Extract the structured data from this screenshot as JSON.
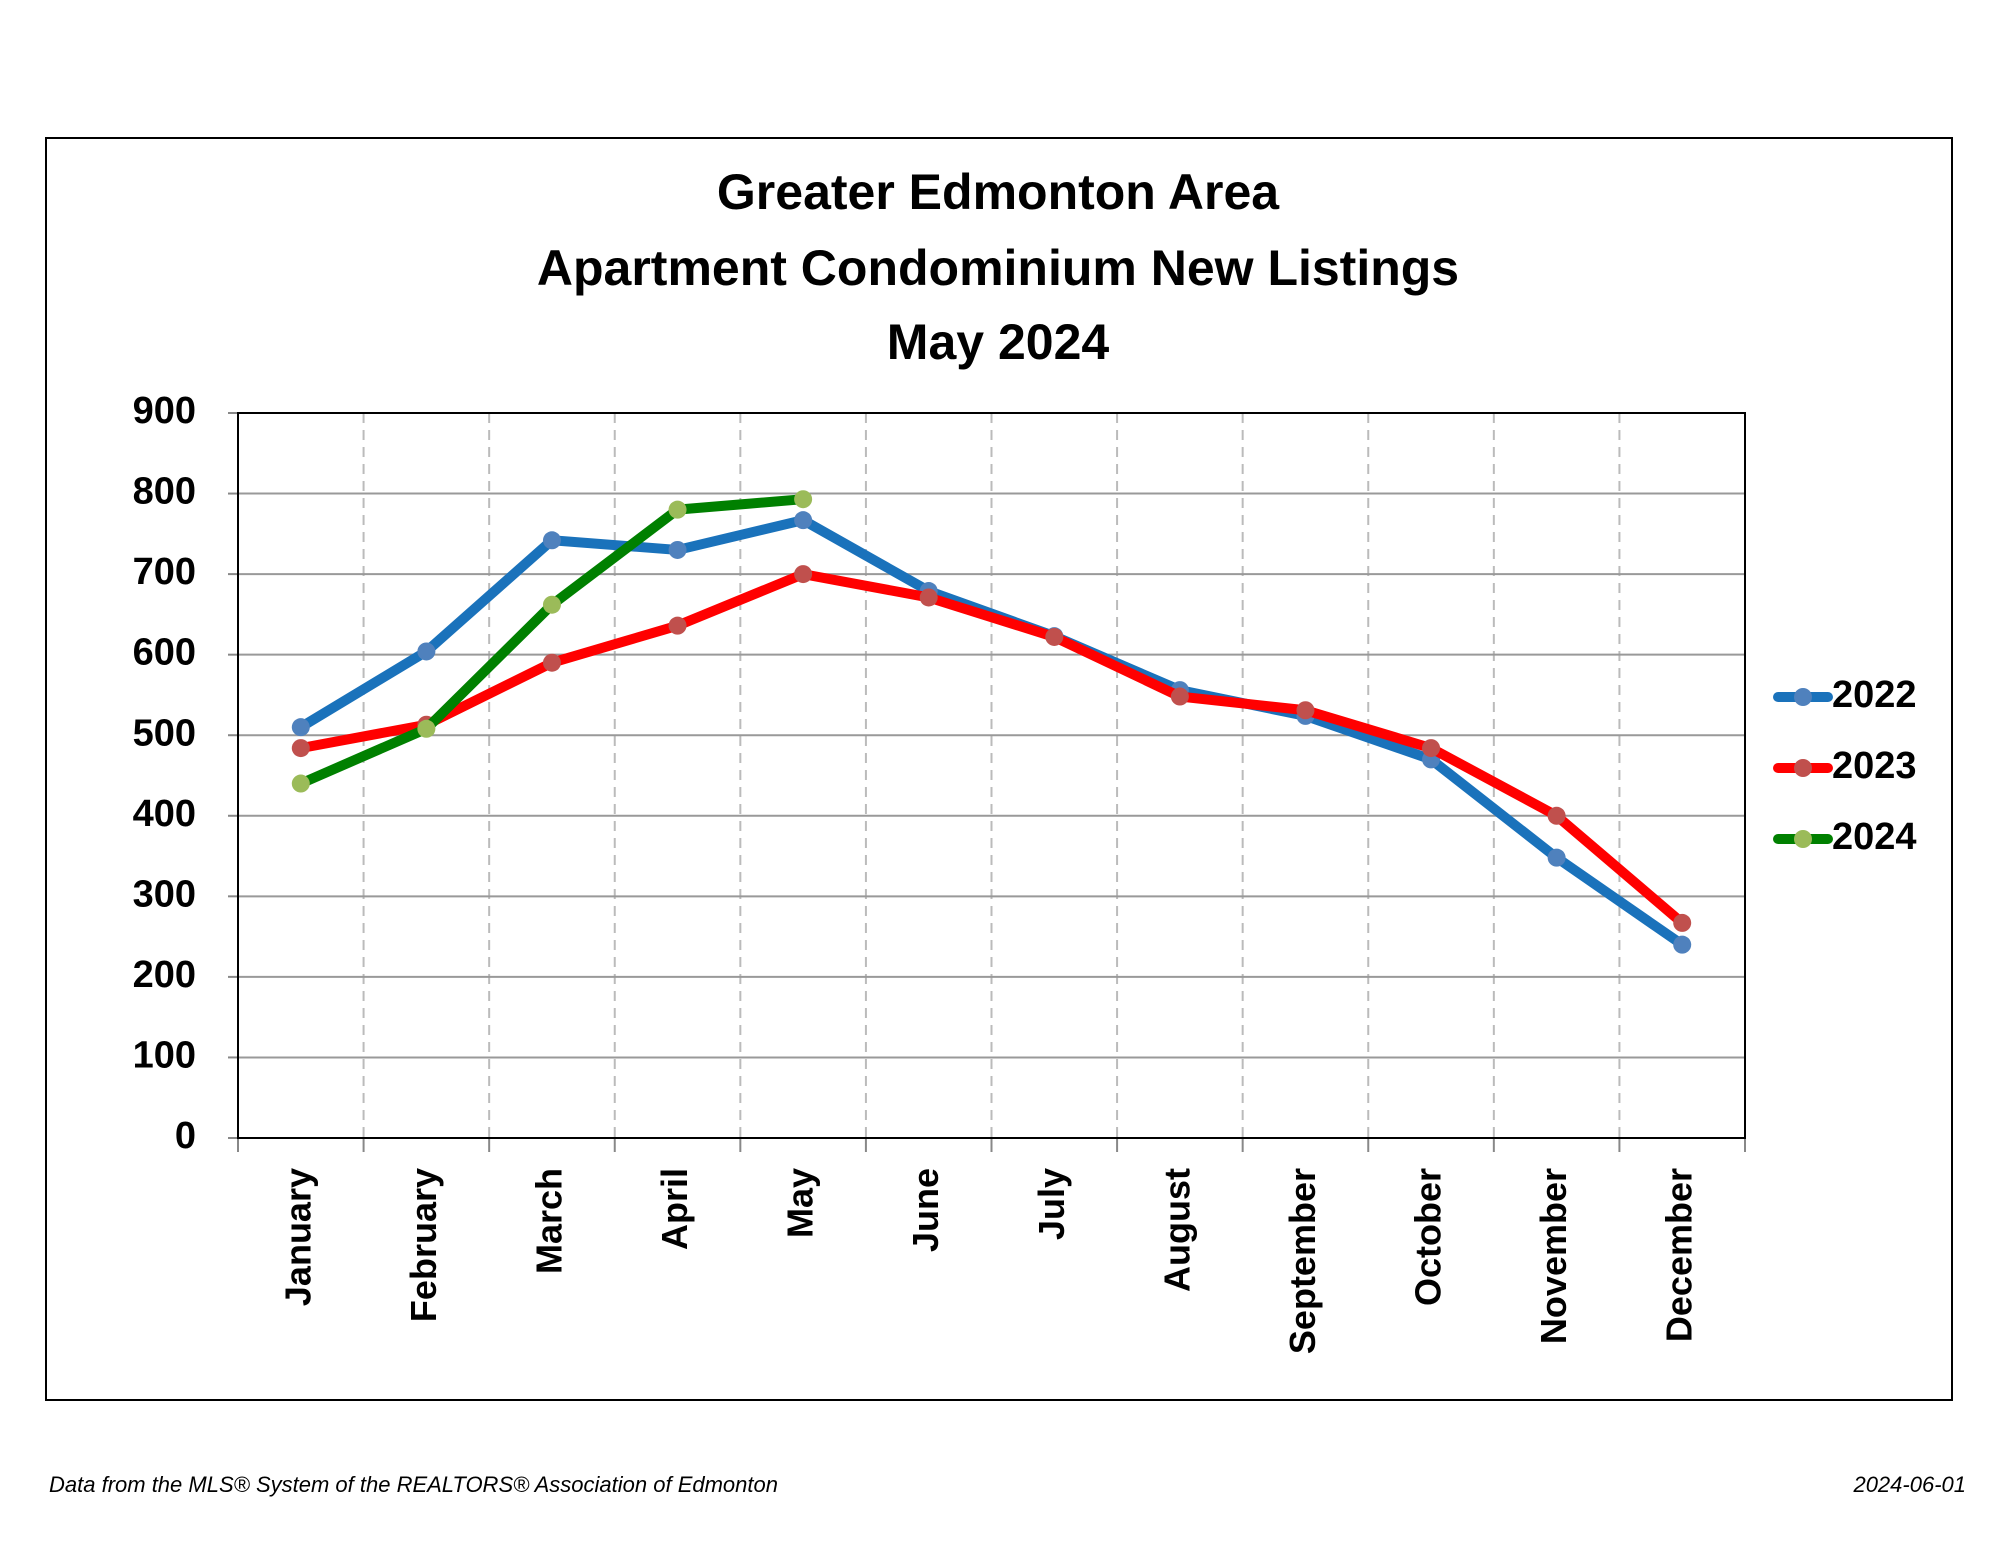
{
  "chart_data": {
    "type": "line",
    "title": [
      "Greater Edmonton Area",
      "Apartment Condominium New Listings",
      "May 2024"
    ],
    "categories": [
      "January",
      "February",
      "March",
      "April",
      "May",
      "June",
      "July",
      "August",
      "September",
      "October",
      "November",
      "December"
    ],
    "series": [
      {
        "name": "2022",
        "color": "#1a72bb",
        "marker_color": "#4f81bd",
        "values": [
          510,
          604,
          742,
          730,
          767,
          679,
          623,
          556,
          524,
          470,
          348,
          240
        ]
      },
      {
        "name": "2023",
        "color": "#ff0000",
        "marker_color": "#c0504d",
        "values": [
          484,
          513,
          590,
          636,
          700,
          671,
          622,
          548,
          531,
          484,
          400,
          267
        ]
      },
      {
        "name": "2024",
        "color": "#008000",
        "marker_color": "#9bbb59",
        "values": [
          440,
          508,
          662,
          780,
          793,
          null,
          null,
          null,
          null,
          null,
          null,
          null
        ]
      }
    ],
    "ylim": [
      0,
      900
    ],
    "yticks": [
      0,
      100,
      200,
      300,
      400,
      500,
      600,
      700,
      800,
      900
    ],
    "grid": true,
    "legend": "right",
    "source": "Data from the MLS® System of the REALTORS® Association of Edmonton",
    "date": "2024-06-01"
  }
}
